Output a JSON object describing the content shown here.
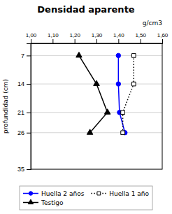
{
  "chart_data": {
    "type": "line",
    "title": "Densidad aparente",
    "xlabel": "g/cm3",
    "ylabel": "profundidad (cm)",
    "xlim": [
      1.0,
      1.6
    ],
    "xticks": [
      {
        "value": 1.0,
        "label": "1,00"
      },
      {
        "value": 1.1,
        "label": "1,10"
      },
      {
        "value": 1.2,
        "label": "1,20"
      },
      {
        "value": 1.3,
        "label": "1,30"
      },
      {
        "value": 1.4,
        "label": "1,40"
      },
      {
        "value": 1.5,
        "label": "1,50"
      },
      {
        "value": 1.6,
        "label": "1,60"
      }
    ],
    "ylim": [
      35,
      4
    ],
    "yticks": [
      7,
      14,
      21,
      26,
      35
    ],
    "grid": "y",
    "legend": "bottom",
    "series": [
      {
        "name": "Huella 2 años",
        "color": "blue",
        "line_style": "solid",
        "marker": "circle",
        "x": [
          1.4,
          1.4,
          1.405,
          1.43
        ],
        "values": [
          7,
          14,
          21,
          26
        ]
      },
      {
        "name": "Huella 1 año",
        "color": "black",
        "line_style": "dotted",
        "marker": "square-open",
        "x": [
          1.47,
          1.47,
          1.42,
          1.42
        ],
        "values": [
          7,
          14,
          21,
          26
        ]
      },
      {
        "name": "Testigo",
        "color": "black",
        "line_style": "solid",
        "marker": "triangle",
        "x": [
          1.22,
          1.3,
          1.35,
          1.27
        ],
        "values": [
          7,
          14,
          21,
          26
        ]
      }
    ]
  }
}
